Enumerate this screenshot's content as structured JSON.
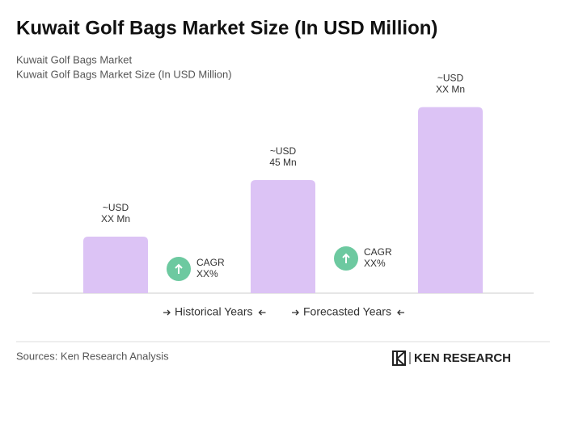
{
  "chart_data": {
    "type": "bar",
    "title": "Kuwait Golf Bags Market Size (In USD Million)",
    "subtitle": [
      "Kuwait Golf Bags Market",
      "Kuwait Golf Bags Market Size (In USD Million)"
    ],
    "categories": [
      null,
      null,
      null
    ],
    "values": [
      22.5,
      45,
      74
    ],
    "value_labels": [
      "~USD XX Mn",
      "~USD 45 Mn",
      "~USD XX Mn"
    ],
    "color": "#dcc3f5",
    "ylim": [
      0,
      80
    ],
    "annotations": [
      {
        "label": "CAGR",
        "value": "XX%"
      },
      {
        "label": "CAGR",
        "value": "XX%"
      }
    ],
    "periods": [
      "Historical Years",
      "Forecasted Years"
    ],
    "source": "Sources: Ken Research Analysis",
    "brand": "KEN RESEARCH"
  }
}
